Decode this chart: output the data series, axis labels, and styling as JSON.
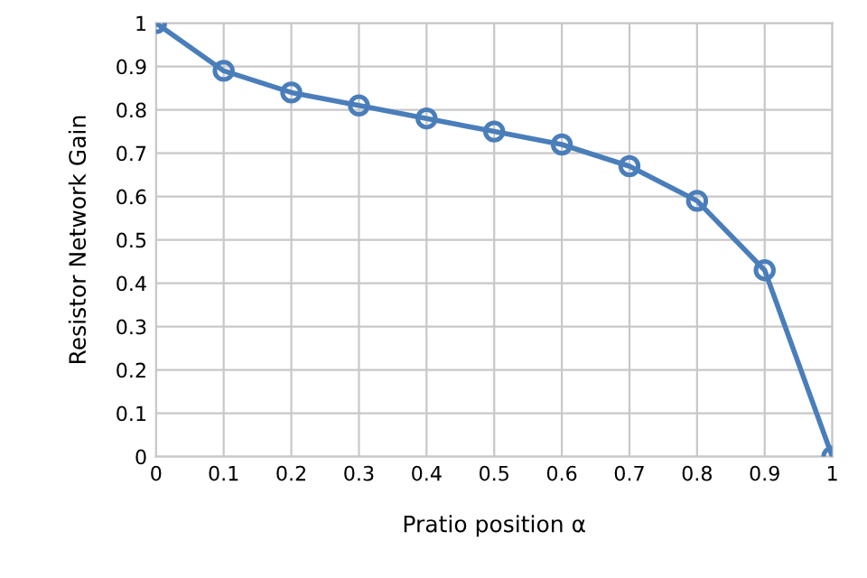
{
  "chart_data": {
    "type": "line",
    "xlabel": "Pratio position α",
    "ylabel": "Resistor Network Gain",
    "x": [
      0,
      0.1,
      0.2,
      0.3,
      0.4,
      0.5,
      0.6,
      0.7,
      0.8,
      0.9,
      1
    ],
    "series": [
      {
        "color": "#4a7ebb",
        "values": [
          1,
          0.89,
          0.84,
          0.81,
          0.78,
          0.75,
          0.72,
          0.67,
          0.59,
          0.43,
          0
        ]
      }
    ],
    "xlim": [
      0,
      1
    ],
    "xticks": [
      0,
      0.1,
      0.2,
      0.3,
      0.4,
      0.5,
      0.6,
      0.7,
      0.8,
      0.9,
      1
    ],
    "ylim": [
      0,
      1
    ],
    "yticks": [
      0,
      0.1,
      0.2,
      0.3,
      0.4,
      0.5,
      0.6,
      0.7,
      0.8,
      0.9,
      1
    ],
    "grid": true,
    "legend": false,
    "marker": "circle",
    "line_style": "solid"
  }
}
